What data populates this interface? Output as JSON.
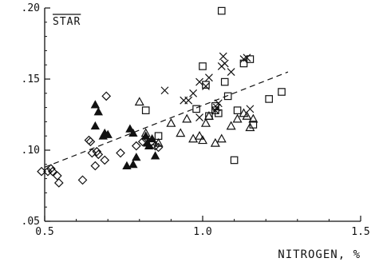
{
  "chart_data": {
    "type": "scatter",
    "title": "STAR",
    "xlabel": "NITROGEN, %",
    "ylabel": "",
    "xlim": [
      0.5,
      1.5
    ],
    "ylim": [
      0.05,
      0.2
    ],
    "xticks": [
      0.5,
      1.0,
      1.5
    ],
    "xtick_labels": [
      "0.5",
      "1.0",
      "1.5"
    ],
    "yticks": [
      0.05,
      0.1,
      0.15,
      0.2
    ],
    "ytick_labels": [
      ".05",
      ".10",
      ".15",
      ".20"
    ],
    "grid": false,
    "trend_line": {
      "style": "dashed",
      "x": [
        0.5,
        1.27
      ],
      "y": [
        0.088,
        0.155
      ]
    },
    "series": [
      {
        "marker": "diamond-open",
        "points": [
          [
            0.49,
            0.085
          ],
          [
            0.51,
            0.085
          ],
          [
            0.52,
            0.087
          ],
          [
            0.525,
            0.085
          ],
          [
            0.54,
            0.082
          ],
          [
            0.545,
            0.077
          ],
          [
            0.62,
            0.079
          ],
          [
            0.64,
            0.107
          ],
          [
            0.645,
            0.106
          ],
          [
            0.65,
            0.098
          ],
          [
            0.66,
            0.089
          ],
          [
            0.665,
            0.099
          ],
          [
            0.67,
            0.097
          ],
          [
            0.69,
            0.093
          ],
          [
            0.695,
            0.138
          ],
          [
            0.74,
            0.098
          ],
          [
            0.79,
            0.103
          ],
          [
            0.81,
            0.106
          ],
          [
            0.82,
            0.108
          ],
          [
            0.85,
            0.103
          ],
          [
            0.86,
            0.102
          ]
        ]
      },
      {
        "marker": "triangle-filled",
        "points": [
          [
            0.66,
            0.132
          ],
          [
            0.67,
            0.127
          ],
          [
            0.66,
            0.117
          ],
          [
            0.685,
            0.11
          ],
          [
            0.69,
            0.112
          ],
          [
            0.7,
            0.111
          ],
          [
            0.77,
            0.115
          ],
          [
            0.78,
            0.112
          ],
          [
            0.78,
            0.09
          ],
          [
            0.79,
            0.095
          ],
          [
            0.82,
            0.11
          ],
          [
            0.825,
            0.105
          ],
          [
            0.83,
            0.103
          ],
          [
            0.84,
            0.108
          ],
          [
            0.85,
            0.096
          ],
          [
            0.76,
            0.089
          ]
        ]
      },
      {
        "marker": "triangle-open",
        "points": [
          [
            0.8,
            0.134
          ],
          [
            0.82,
            0.112
          ],
          [
            0.84,
            0.106
          ],
          [
            0.86,
            0.105
          ],
          [
            0.9,
            0.119
          ],
          [
            0.93,
            0.112
          ],
          [
            0.95,
            0.122
          ],
          [
            0.97,
            0.108
          ],
          [
            0.99,
            0.11
          ],
          [
            1.0,
            0.107
          ],
          [
            1.01,
            0.119
          ],
          [
            1.02,
            0.124
          ],
          [
            1.04,
            0.105
          ],
          [
            1.06,
            0.108
          ],
          [
            1.09,
            0.117
          ],
          [
            1.11,
            0.122
          ],
          [
            1.14,
            0.124
          ],
          [
            1.15,
            0.116
          ],
          [
            1.16,
            0.122
          ],
          [
            1.13,
            0.126
          ]
        ]
      },
      {
        "marker": "square-open",
        "points": [
          [
            0.82,
            0.128
          ],
          [
            0.86,
            0.11
          ],
          [
            0.98,
            0.129
          ],
          [
            1.0,
            0.159
          ],
          [
            1.01,
            0.146
          ],
          [
            1.02,
            0.124
          ],
          [
            1.04,
            0.131
          ],
          [
            1.04,
            0.128
          ],
          [
            1.05,
            0.126
          ],
          [
            1.06,
            0.198
          ],
          [
            1.07,
            0.148
          ],
          [
            1.08,
            0.138
          ],
          [
            1.1,
            0.093
          ],
          [
            1.11,
            0.128
          ],
          [
            1.13,
            0.161
          ],
          [
            1.15,
            0.164
          ],
          [
            1.16,
            0.118
          ],
          [
            1.21,
            0.136
          ],
          [
            1.25,
            0.141
          ]
        ]
      },
      {
        "marker": "x",
        "points": [
          [
            0.88,
            0.142
          ],
          [
            0.94,
            0.135
          ],
          [
            0.955,
            0.135
          ],
          [
            0.97,
            0.14
          ],
          [
            0.99,
            0.148
          ],
          [
            1.01,
            0.145
          ],
          [
            1.02,
            0.151
          ],
          [
            1.04,
            0.128
          ],
          [
            1.045,
            0.13
          ],
          [
            1.05,
            0.133
          ],
          [
            1.06,
            0.159
          ],
          [
            1.065,
            0.166
          ],
          [
            1.07,
            0.161
          ],
          [
            1.09,
            0.155
          ],
          [
            1.13,
            0.164
          ],
          [
            1.14,
            0.165
          ],
          [
            1.15,
            0.129
          ],
          [
            0.99,
            0.123
          ]
        ]
      }
    ]
  }
}
